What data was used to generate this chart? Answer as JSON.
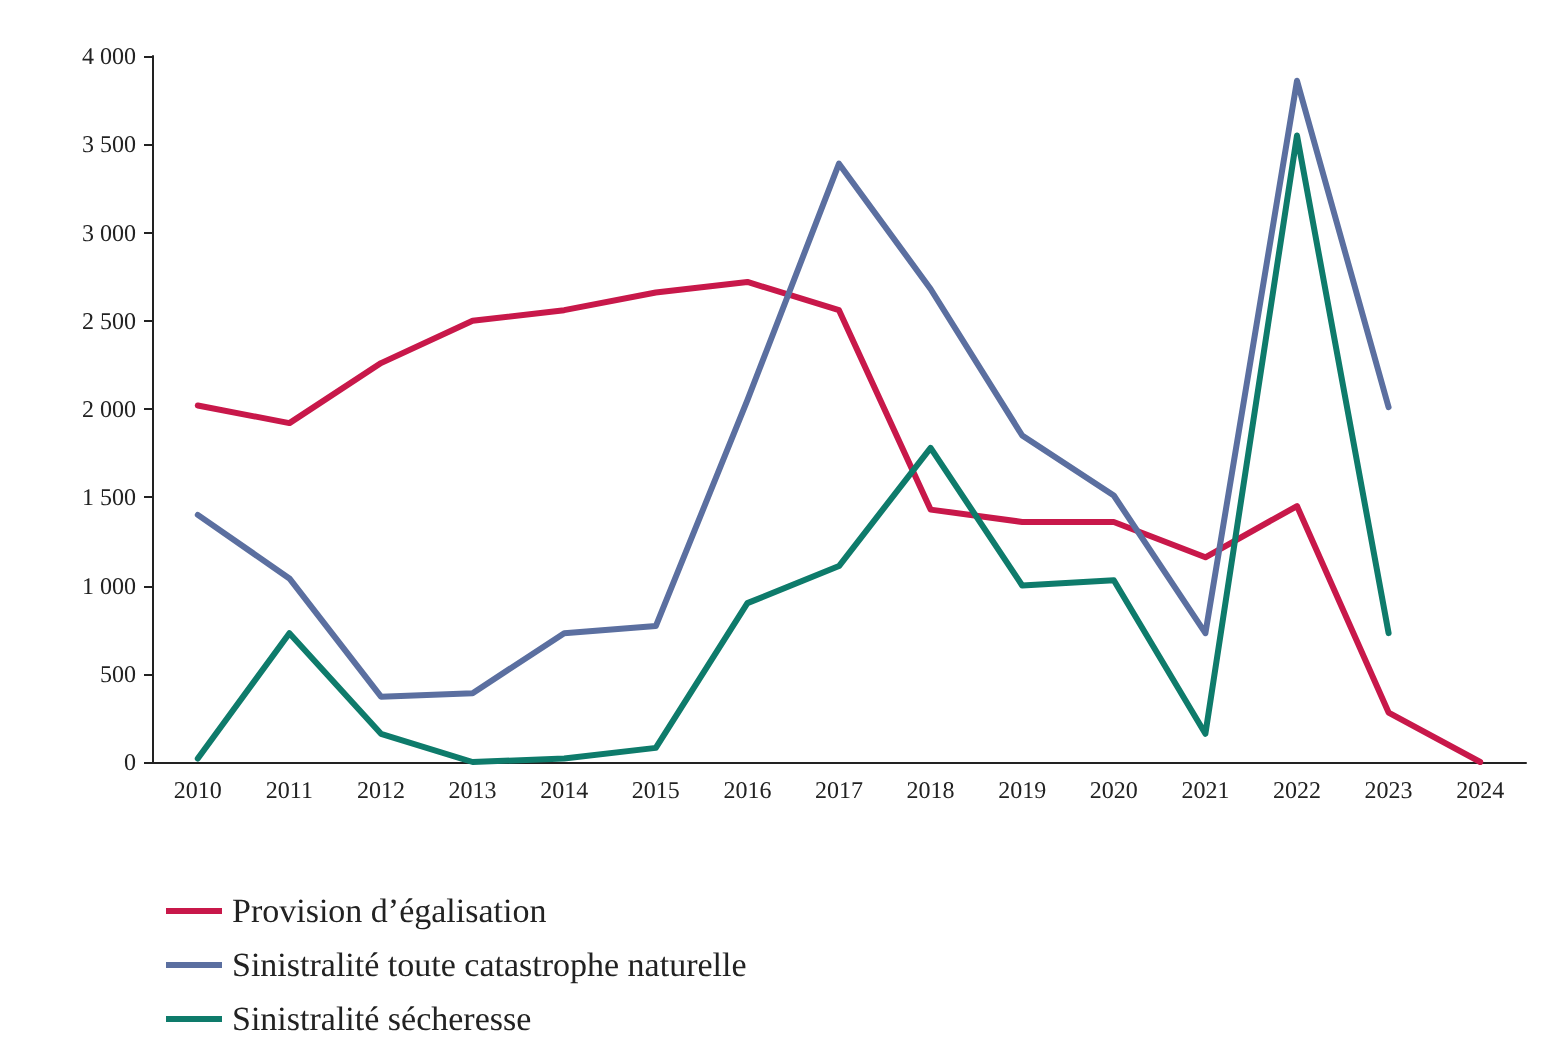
{
  "chart_data": {
    "type": "line",
    "categories": [
      "2010",
      "2011",
      "2012",
      "2013",
      "2014",
      "2015",
      "2016",
      "2017",
      "2018",
      "2019",
      "2020",
      "2021",
      "2022",
      "2023",
      "2024"
    ],
    "series": [
      {
        "name": "Provision d’égalisation",
        "color": "#c8184a",
        "values": [
          2020,
          1920,
          2260,
          2500,
          2560,
          2660,
          2720,
          2560,
          1430,
          1360,
          1360,
          1160,
          1450,
          280,
          0
        ]
      },
      {
        "name": "Sinistralité toute catastrophe naturelle",
        "color": "#5b6fa0",
        "values": [
          1400,
          1040,
          370,
          390,
          730,
          770,
          2050,
          3390,
          2680,
          1850,
          1510,
          730,
          3860,
          2010,
          null
        ]
      },
      {
        "name": "Sinistralité sécheresse",
        "color": "#0e7b6b",
        "values": [
          20,
          730,
          160,
          0,
          20,
          80,
          900,
          1110,
          1780,
          1000,
          1030,
          160,
          3550,
          730,
          null
        ]
      }
    ],
    "ylim": [
      0,
      4000
    ],
    "yticks": [
      0,
      500,
      {
        "value": 1000,
        "label": "1 000"
      },
      {
        "value": 1500,
        "label": "1 500"
      },
      {
        "value": 2000,
        "label": "2 000"
      },
      {
        "value": 2500,
        "label": "2 500"
      },
      {
        "value": 3000,
        "label": "3 000"
      },
      {
        "value": 3500,
        "label": "3 500"
      },
      {
        "value": 4000,
        "label": "4 000"
      }
    ],
    "grid": false,
    "legend": "bottom left",
    "marker": "none",
    "line_style": "solid"
  }
}
